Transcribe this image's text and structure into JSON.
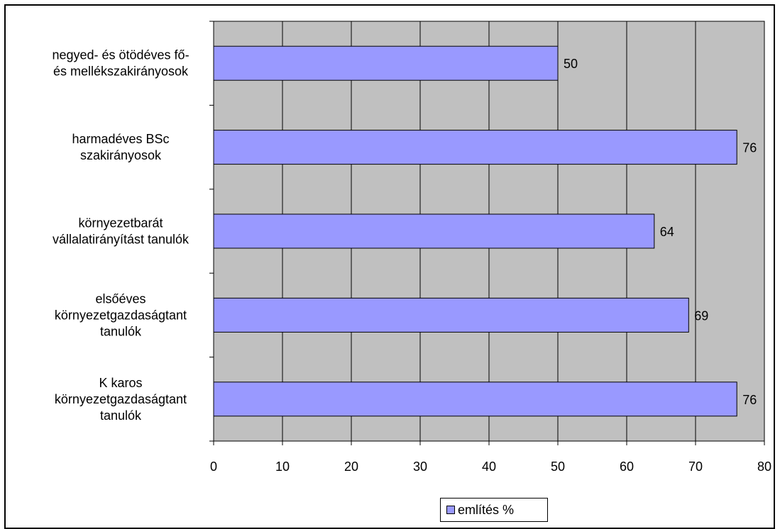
{
  "chart_data": {
    "type": "bar",
    "orientation": "horizontal",
    "categories": [
      [
        "negyed- és ötödéves fő-",
        "és mellékszakirányosok"
      ],
      [
        "harmadéves BSc",
        "szakirányosok"
      ],
      [
        "környezetbarát",
        "vállalatirányítást tanulók"
      ],
      [
        "elsőéves",
        "környezetgazdaságtant",
        "tanulók"
      ],
      [
        "K karos",
        "környezetgazdaságtant",
        "tanulók"
      ]
    ],
    "series": [
      {
        "name": "említés %",
        "values": [
          50,
          76,
          64,
          69,
          76
        ]
      }
    ],
    "data_labels": [
      "50",
      "76",
      "64",
      "69",
      "76"
    ],
    "xlim": [
      0,
      80
    ],
    "xticks": [
      0,
      10,
      20,
      30,
      40,
      50,
      60,
      70,
      80
    ],
    "tick_labels": [
      "0",
      "10",
      "20",
      "30",
      "40",
      "50",
      "60",
      "70",
      "80"
    ],
    "grid": true,
    "legend_position": "bottom",
    "colors": {
      "bar": "#9999FF",
      "plot_bg": "#C0C0C0",
      "border": "#000000"
    }
  }
}
